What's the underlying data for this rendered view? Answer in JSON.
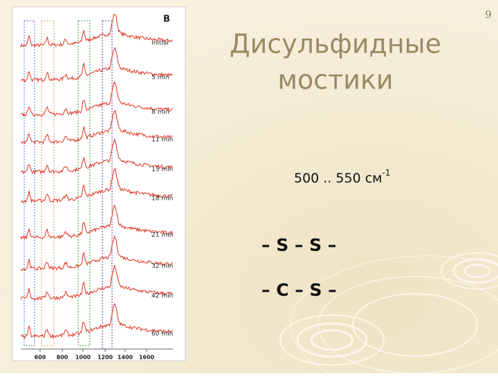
{
  "slide_number": "9",
  "title_lines": [
    "Дисульфидные",
    "мостики"
  ],
  "wavenumber": {
    "text": "500 .. 550 см",
    "sup": "-1"
  },
  "formulas": [
    "– S – S –",
    "– C – S –"
  ],
  "figure": {
    "panel": "B",
    "time_labels": [
      "Initial",
      "5 min",
      "8 min",
      "11 min",
      "15 min",
      "18 min",
      "21 min",
      "32 min",
      "42 min",
      "60 min"
    ],
    "x_labels": [
      "600",
      "800",
      "1000",
      "1200",
      "1400",
      "1600"
    ]
  }
}
